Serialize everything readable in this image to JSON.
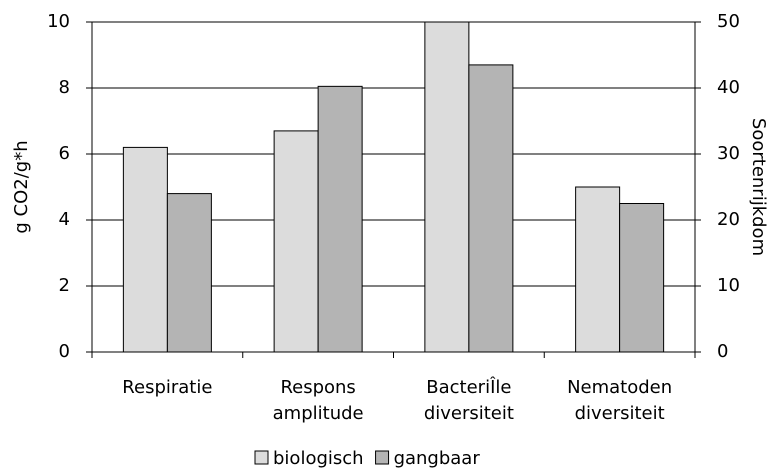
{
  "chart_data": {
    "type": "bar",
    "categories": [
      [
        "Respiratie"
      ],
      [
        "Respons",
        "amplitude"
      ],
      [
        "BacteriÎle",
        "diversiteit"
      ],
      [
        "Nematoden",
        "diversiteit"
      ]
    ],
    "series": [
      {
        "name": "biologisch",
        "color": "#dcdcdc",
        "values": [
          6.2,
          6.7,
          10,
          5.0
        ]
      },
      {
        "name": "gangbaar",
        "color": "#b4b4b4",
        "values": [
          4.8,
          8.05,
          8.7,
          4.5
        ]
      }
    ],
    "ylabel": "g CO2/g*h",
    "y2label": "Soortenrijkdom",
    "ylim": [
      0,
      10
    ],
    "yticks": [
      0,
      2,
      4,
      6,
      8,
      10
    ],
    "y2lim": [
      0,
      50
    ],
    "y2ticks": [
      0,
      10,
      20,
      30,
      40,
      50
    ],
    "grid": true,
    "legend": "bottom"
  }
}
